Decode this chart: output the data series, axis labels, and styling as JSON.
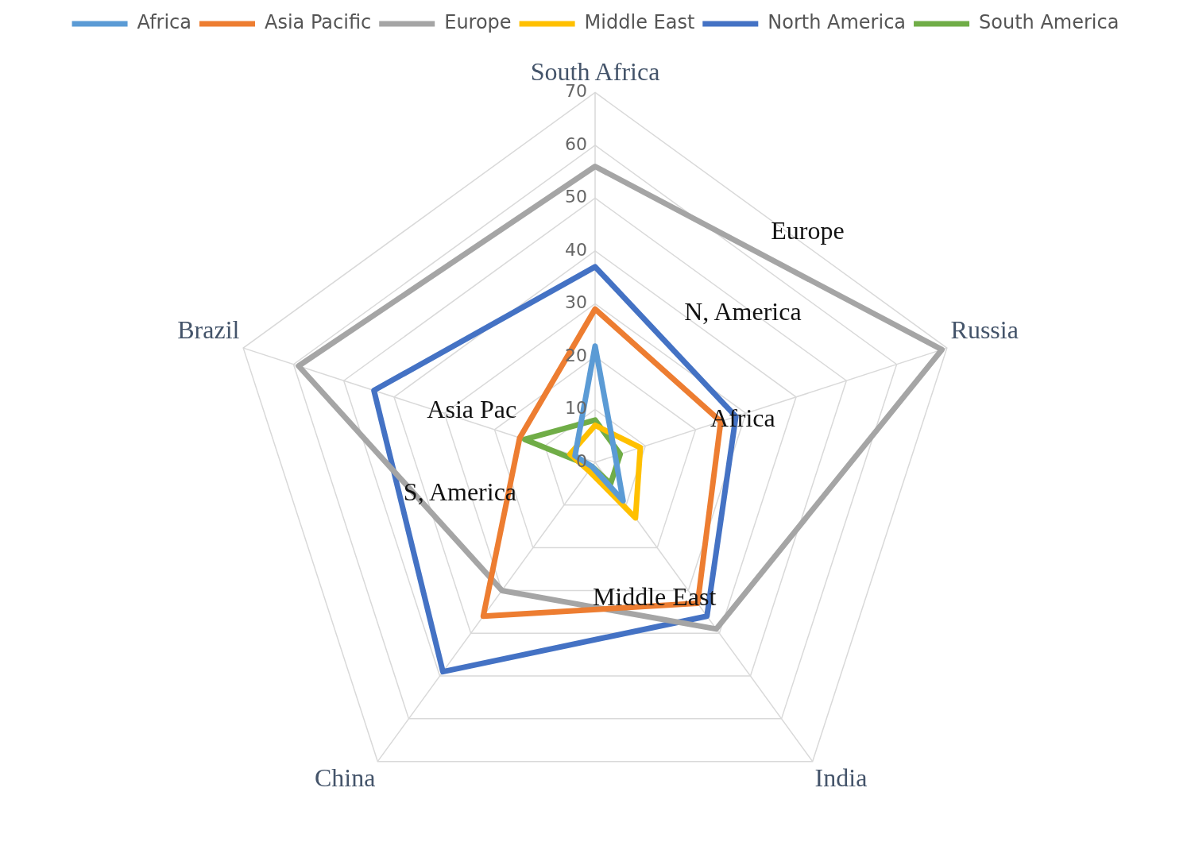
{
  "chart_data": {
    "type": "radar",
    "categories": [
      "South Africa",
      "Russia",
      "India",
      "China",
      "Brazil"
    ],
    "series": [
      {
        "name": "Africa",
        "color": "#5b9bd5",
        "values": [
          22,
          4,
          9,
          1,
          4
        ]
      },
      {
        "name": "Asia Pacific",
        "color": "#ed7d31",
        "values": [
          29,
          25,
          33,
          36,
          15
        ]
      },
      {
        "name": "Europe",
        "color": "#a5a5a5",
        "values": [
          56,
          69,
          39,
          30,
          59
        ]
      },
      {
        "name": "Middle East",
        "color": "#ffc000",
        "values": [
          7,
          9,
          13,
          2,
          5
        ]
      },
      {
        "name": "North America",
        "color": "#4472c4",
        "values": [
          37,
          28,
          36,
          49,
          44
        ]
      },
      {
        "name": "South America",
        "color": "#70ad47",
        "values": [
          8,
          5,
          5,
          1,
          14
        ]
      }
    ],
    "ylim": [
      0,
      70
    ],
    "yticks": [
      0,
      10,
      20,
      30,
      40,
      50,
      60,
      70
    ],
    "annotations": [
      "Europe",
      "N, America",
      "Africa",
      "Asia Pac",
      "S, America",
      "Middle East"
    ],
    "grid": true,
    "legend": "top",
    "marker": "none",
    "line_style": "solid"
  }
}
